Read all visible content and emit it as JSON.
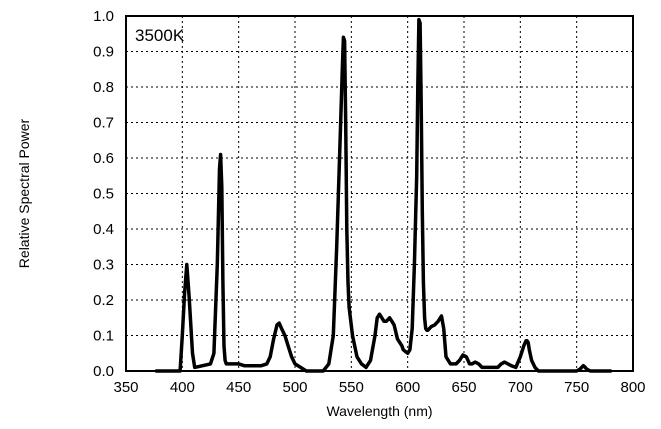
{
  "chart_data": {
    "type": "line",
    "title": "",
    "annotation": "3500K",
    "xlabel": "Wavelength (nm)",
    "ylabel": "Relative Spectral Power",
    "xlim": [
      350,
      800
    ],
    "ylim": [
      0,
      1.0
    ],
    "x_ticks": [
      350,
      400,
      450,
      500,
      550,
      600,
      650,
      700,
      750,
      800
    ],
    "y_ticks": [
      0.0,
      0.1,
      0.2,
      0.3,
      0.4,
      0.5,
      0.6,
      0.7,
      0.8,
      0.9,
      1.0
    ],
    "x_tick_labels": [
      "350",
      "400",
      "450",
      "500",
      "550",
      "600",
      "650",
      "700",
      "750",
      "800"
    ],
    "y_tick_labels": [
      "0.0",
      "0.1",
      "0.2",
      "0.3",
      "0.4",
      "0.5",
      "0.6",
      "0.7",
      "0.8",
      "0.9",
      "1.0"
    ],
    "grid": true,
    "legend": "none",
    "line_color": "#000000",
    "series": [
      {
        "x": [
          377,
          398,
          400,
          402,
          404,
          406,
          409,
          411,
          425,
          428,
          431,
          433,
          434,
          435,
          436,
          437,
          438,
          439,
          445,
          450,
          455,
          460,
          465,
          470,
          475,
          478,
          481,
          484,
          486,
          488,
          491,
          494,
          497,
          500,
          505,
          510,
          515,
          520,
          525,
          530,
          534,
          537,
          540,
          542,
          543,
          544,
          545,
          546,
          547,
          548,
          551,
          555,
          559,
          563,
          567,
          571,
          573,
          575,
          577,
          579,
          581,
          584,
          586,
          588,
          591,
          593,
          595,
          596,
          598,
          600,
          602,
          604,
          606,
          608,
          609,
          610,
          611,
          612,
          613,
          614,
          615,
          616,
          617,
          618,
          621,
          624,
          627,
          630,
          632,
          634,
          638,
          643,
          646,
          649,
          652,
          655,
          657,
          660,
          663,
          666,
          670,
          675,
          680,
          683,
          686,
          689,
          692,
          696,
          700,
          703,
          705,
          706,
          707,
          708,
          710,
          713,
          716,
          720,
          730,
          740,
          750,
          753,
          755,
          756,
          757,
          759,
          762,
          770,
          780
        ],
        "y": [
          0.0,
          0.0,
          0.1,
          0.22,
          0.3,
          0.21,
          0.05,
          0.01,
          0.02,
          0.05,
          0.3,
          0.57,
          0.61,
          0.52,
          0.25,
          0.07,
          0.03,
          0.02,
          0.02,
          0.02,
          0.015,
          0.015,
          0.015,
          0.015,
          0.02,
          0.04,
          0.09,
          0.13,
          0.135,
          0.12,
          0.1,
          0.07,
          0.04,
          0.02,
          0.01,
          0.0,
          0.0,
          0.0,
          0.0,
          0.02,
          0.1,
          0.35,
          0.65,
          0.85,
          0.94,
          0.93,
          0.7,
          0.4,
          0.25,
          0.18,
          0.1,
          0.04,
          0.02,
          0.01,
          0.03,
          0.1,
          0.15,
          0.16,
          0.15,
          0.14,
          0.14,
          0.15,
          0.14,
          0.13,
          0.09,
          0.08,
          0.07,
          0.06,
          0.055,
          0.05,
          0.06,
          0.12,
          0.3,
          0.55,
          0.8,
          0.99,
          0.98,
          0.75,
          0.45,
          0.25,
          0.15,
          0.12,
          0.115,
          0.115,
          0.125,
          0.13,
          0.14,
          0.155,
          0.12,
          0.04,
          0.02,
          0.02,
          0.03,
          0.045,
          0.04,
          0.02,
          0.02,
          0.025,
          0.02,
          0.01,
          0.01,
          0.01,
          0.01,
          0.02,
          0.025,
          0.02,
          0.015,
          0.01,
          0.04,
          0.07,
          0.085,
          0.085,
          0.08,
          0.06,
          0.03,
          0.01,
          0.0,
          0.0,
          0.0,
          0.0,
          0.0,
          0.005,
          0.012,
          0.015,
          0.012,
          0.005,
          0.0,
          0.0,
          0.0
        ]
      }
    ]
  }
}
